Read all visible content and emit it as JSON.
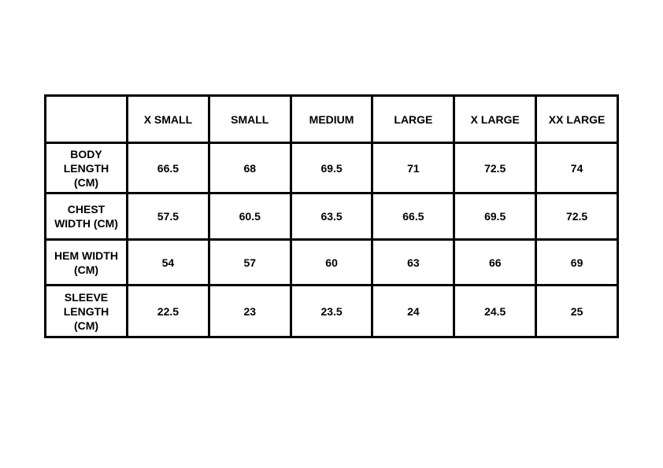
{
  "table": {
    "columns": [
      "X SMALL",
      "SMALL",
      "MEDIUM",
      "LARGE",
      "X LARGE",
      "XX LARGE"
    ],
    "rows": [
      {
        "label": [
          "BODY",
          "LENGTH",
          "(CM)"
        ],
        "values": [
          66.5,
          68,
          69.5,
          71,
          72.5,
          74
        ]
      },
      {
        "label": [
          "CHEST",
          "WIDTH (CM)"
        ],
        "values": [
          57.5,
          60.5,
          63.5,
          66.5,
          69.5,
          72.5
        ]
      },
      {
        "label": [
          "HEM WIDTH",
          "(CM)"
        ],
        "values": [
          54,
          57,
          60,
          63,
          66,
          69
        ]
      },
      {
        "label": [
          "SLEEVE",
          "LENGTH",
          "(CM)"
        ],
        "values": [
          22.5,
          23,
          23.5,
          24,
          24.5,
          25
        ]
      }
    ]
  }
}
